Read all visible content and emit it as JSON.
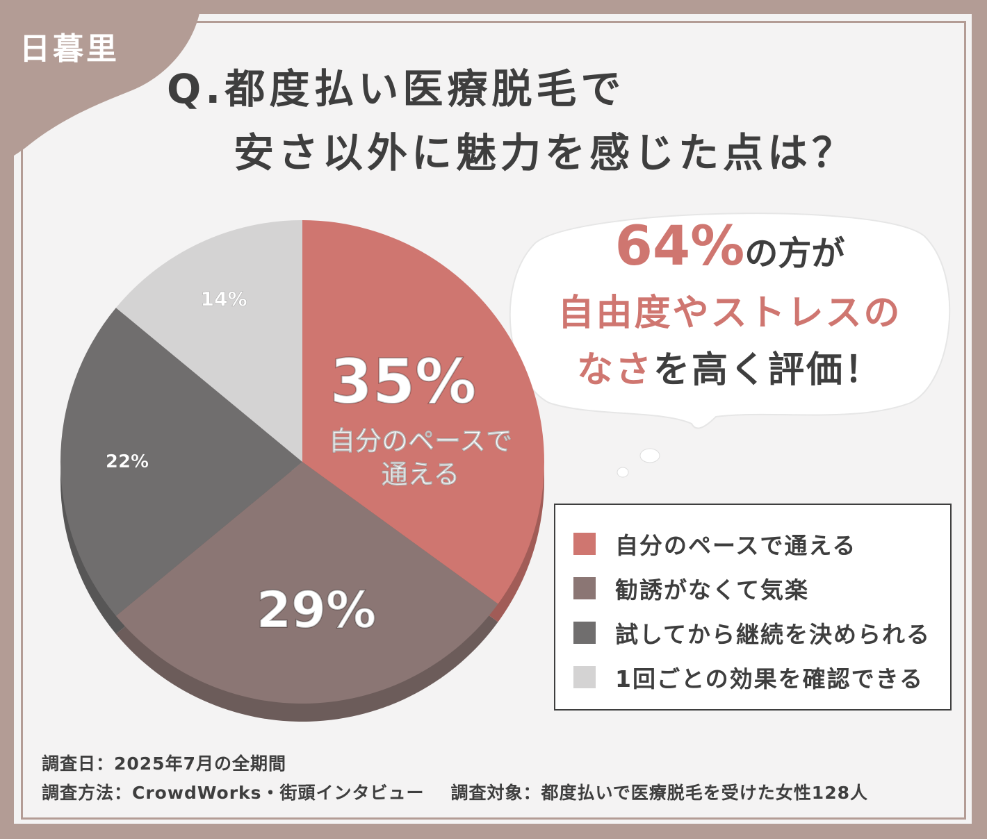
{
  "badge": "日暮里",
  "title": {
    "line1": "Q.都度払い医療脱毛で",
    "line2": "安さ以外に魅力を感じた点は？"
  },
  "callout": {
    "percent": "64%",
    "line1_rest": "の方が",
    "line2": "自由度やストレスの",
    "line3_pink": "なさ",
    "line3_rest": "を高く評価！"
  },
  "chart_data": {
    "type": "pie",
    "categories": [
      "自分のペースで通える",
      "勧誘がなくて気楽",
      "試してから継続を決められる",
      "1回ごとの効果を確認できる"
    ],
    "values": [
      35,
      29,
      22,
      14
    ],
    "labels": [
      "35%",
      "29%",
      "22%",
      "14%"
    ],
    "highlight_label": "自分のペースで通える",
    "colors": [
      "#cf7670",
      "#8b7674",
      "#706e6e",
      "#d4d3d3"
    ],
    "legend_placement": "bottom-right"
  },
  "footer": {
    "date": "調査日：2025年7月の全期間",
    "method": "調査方法：CrowdWorks・街頭インタビュー",
    "target": "調査対象：都度払いで医療脱毛を受けた女性128人"
  }
}
